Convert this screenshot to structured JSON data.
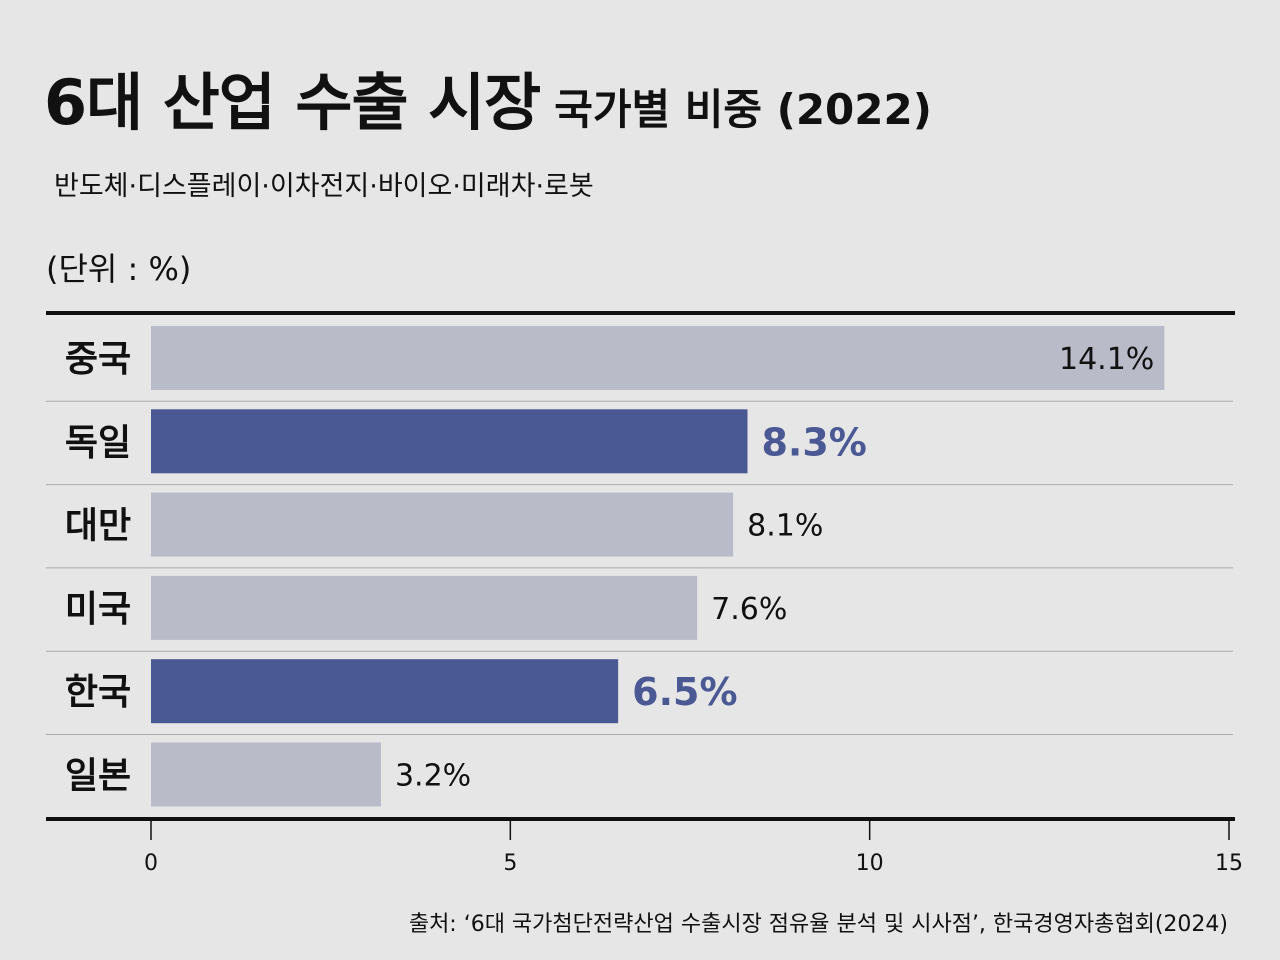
{
  "chart_data": {
    "type": "bar",
    "orientation": "horizontal",
    "title": "6대 산업 수출 시장",
    "title_suffix": "국가별 비중 (2022)",
    "subtitle": "반도체·디스플레이·이차전지·바이오·미래차·로봇",
    "unit_label": "(단위 : %)",
    "categories": [
      "중국",
      "독일",
      "대만",
      "미국",
      "한국",
      "일본"
    ],
    "values": [
      14.1,
      8.3,
      8.1,
      7.6,
      6.5,
      3.2
    ],
    "data_labels": [
      "14.1%",
      "8.3%",
      "8.1%",
      "7.6%",
      "6.5%",
      "3.2%"
    ],
    "highlighted": [
      false,
      true,
      false,
      false,
      true,
      false
    ],
    "xlim": [
      0,
      15
    ],
    "xticks": [
      0,
      5,
      10,
      15
    ],
    "xtick_labels": [
      "0",
      "5",
      "10",
      "15"
    ],
    "grid": false,
    "colors": {
      "default": "#b9bbc9",
      "highlight": "#4a5894",
      "background": "#e6e6e6"
    },
    "source": "출처: ‘6대 국가첨단전략산업 수출시장 점유율 분석 및 시사점’, 한국경영자총협회(2024)"
  }
}
